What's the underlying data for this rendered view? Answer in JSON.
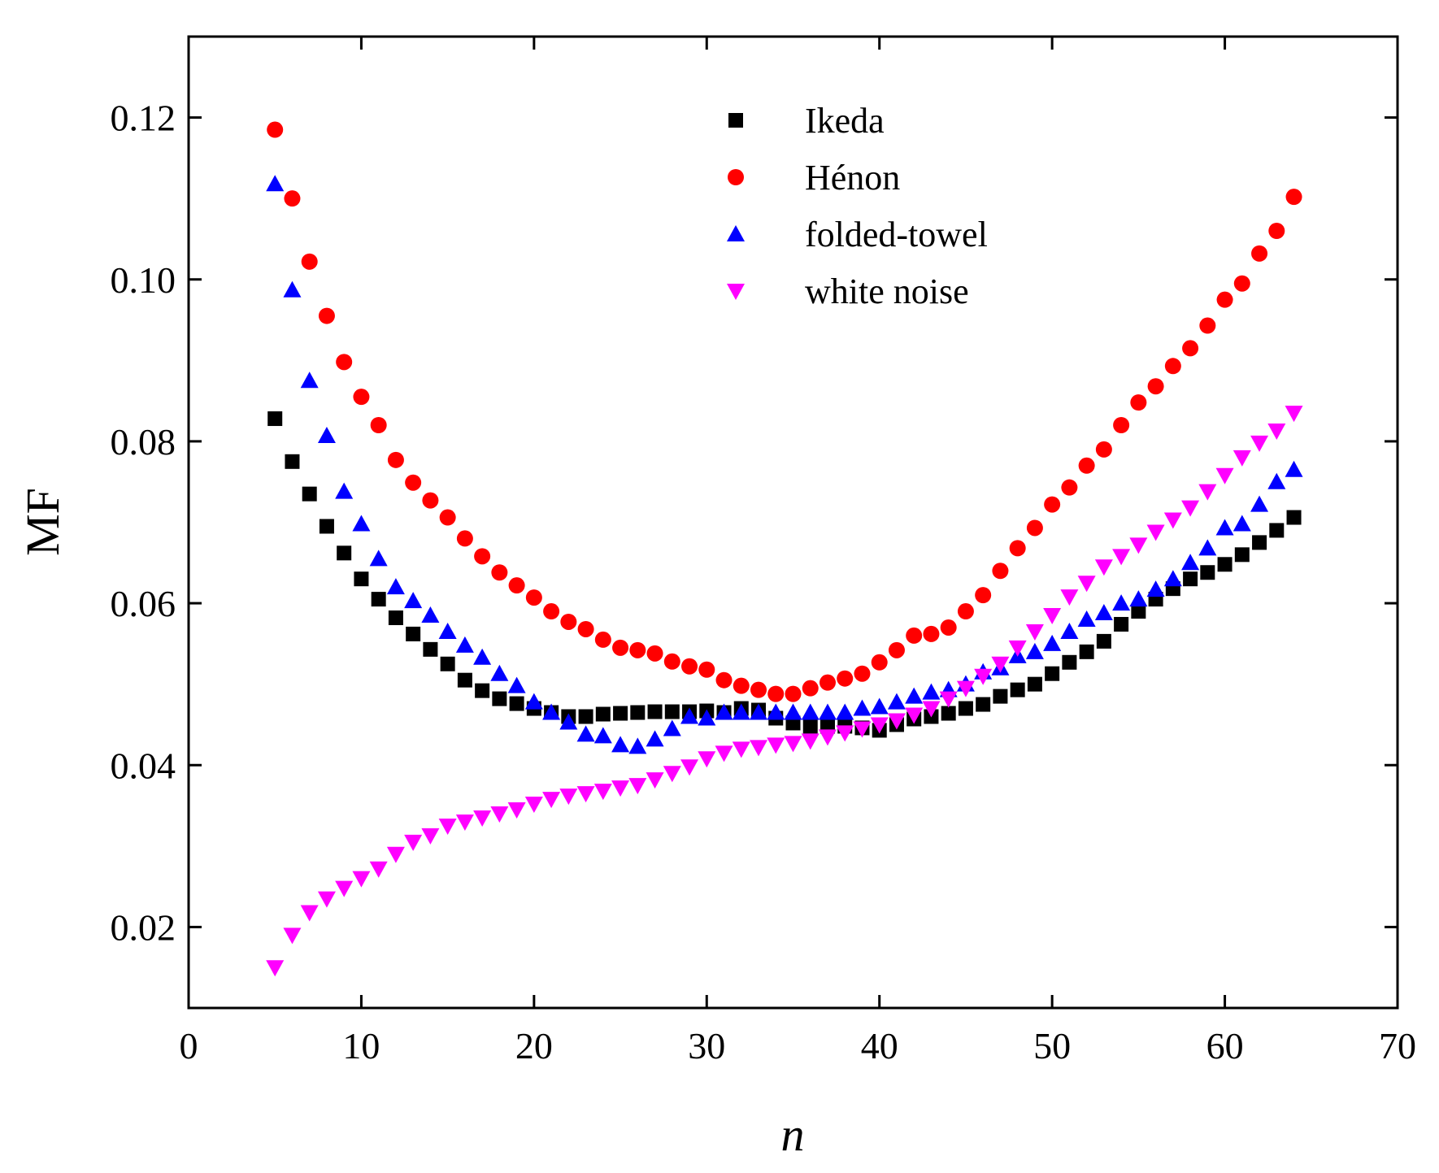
{
  "chart_data": {
    "type": "scatter",
    "title": "",
    "xlabel": "n",
    "ylabel": "MF",
    "xlim": [
      0,
      70
    ],
    "ylim": [
      0.01,
      0.13
    ],
    "xticks": [
      0,
      10,
      20,
      30,
      40,
      50,
      60,
      70
    ],
    "xtick_labels": [
      "0",
      "10",
      "20",
      "30",
      "40",
      "50",
      "60",
      "70"
    ],
    "yticks": [
      0.02,
      0.04,
      0.06,
      0.08,
      0.1,
      0.12
    ],
    "ytick_labels": [
      "0.02",
      "0.04",
      "0.06",
      "0.08",
      "0.10",
      "0.12"
    ],
    "grid": false,
    "legend_position": "top-center",
    "x": [
      5,
      6,
      7,
      8,
      9,
      10,
      11,
      12,
      13,
      14,
      15,
      16,
      17,
      18,
      19,
      20,
      21,
      22,
      23,
      24,
      25,
      26,
      27,
      28,
      29,
      30,
      31,
      32,
      33,
      34,
      35,
      36,
      37,
      38,
      39,
      40,
      41,
      42,
      43,
      44,
      45,
      46,
      47,
      48,
      49,
      50,
      51,
      52,
      53,
      54,
      55,
      56,
      57,
      58,
      59,
      60,
      61,
      62,
      63,
      64
    ],
    "series": [
      {
        "name": "Ikeda",
        "marker": "square",
        "color": "#000000",
        "values": [
          0.0828,
          0.0775,
          0.0735,
          0.0695,
          0.0662,
          0.063,
          0.0605,
          0.0582,
          0.0562,
          0.0543,
          0.0525,
          0.0505,
          0.0492,
          0.0482,
          0.0476,
          0.047,
          0.0465,
          0.046,
          0.046,
          0.0463,
          0.0464,
          0.0465,
          0.0466,
          0.0466,
          0.0466,
          0.0467,
          0.0465,
          0.047,
          0.0468,
          0.0458,
          0.0452,
          0.0448,
          0.0448,
          0.0448,
          0.0446,
          0.0443,
          0.045,
          0.0457,
          0.046,
          0.0464,
          0.047,
          0.0475,
          0.0485,
          0.0493,
          0.05,
          0.0513,
          0.0527,
          0.054,
          0.0553,
          0.0574,
          0.059,
          0.0605,
          0.0618,
          0.063,
          0.0638,
          0.0648,
          0.066,
          0.0675,
          0.069,
          0.0706
        ]
      },
      {
        "name": "Hénon",
        "marker": "circle",
        "color": "#ff0000",
        "values": [
          0.1185,
          0.11,
          0.1022,
          0.0955,
          0.0898,
          0.0855,
          0.082,
          0.0777,
          0.0749,
          0.0727,
          0.0706,
          0.068,
          0.0658,
          0.0638,
          0.0622,
          0.0607,
          0.059,
          0.0577,
          0.0568,
          0.0555,
          0.0545,
          0.0542,
          0.0538,
          0.0528,
          0.0522,
          0.0518,
          0.0505,
          0.0498,
          0.0493,
          0.0488,
          0.0488,
          0.0495,
          0.0502,
          0.0507,
          0.0513,
          0.0527,
          0.0542,
          0.056,
          0.0562,
          0.057,
          0.059,
          0.061,
          0.064,
          0.0668,
          0.0693,
          0.0722,
          0.0743,
          0.077,
          0.079,
          0.082,
          0.0848,
          0.0868,
          0.0893,
          0.0915,
          0.0943,
          0.0975,
          0.0995,
          0.1032,
          0.106,
          0.1102
        ]
      },
      {
        "name": "folded-towel",
        "marker": "triangle-up",
        "color": "#0000ff",
        "values": [
          0.1118,
          0.0987,
          0.0875,
          0.0807,
          0.0738,
          0.0698,
          0.0655,
          0.062,
          0.0603,
          0.0585,
          0.0565,
          0.0548,
          0.0533,
          0.0513,
          0.0498,
          0.0478,
          0.0465,
          0.0453,
          0.0438,
          0.0436,
          0.0425,
          0.0423,
          0.0432,
          0.0445,
          0.046,
          0.0458,
          0.0465,
          0.0465,
          0.0465,
          0.0465,
          0.0465,
          0.0465,
          0.0465,
          0.0465,
          0.047,
          0.0472,
          0.0478,
          0.0485,
          0.049,
          0.0493,
          0.05,
          0.0515,
          0.052,
          0.0535,
          0.054,
          0.055,
          0.0565,
          0.058,
          0.0588,
          0.06,
          0.0605,
          0.0617,
          0.063,
          0.065,
          0.0668,
          0.0693,
          0.0698,
          0.0722,
          0.075,
          0.0765
        ]
      },
      {
        "name": "white noise",
        "marker": "triangle-down",
        "color": "#ff00ff",
        "values": [
          0.015,
          0.019,
          0.0218,
          0.0235,
          0.0248,
          0.026,
          0.0272,
          0.029,
          0.0305,
          0.0313,
          0.0325,
          0.033,
          0.0335,
          0.034,
          0.0345,
          0.0352,
          0.0358,
          0.0362,
          0.0365,
          0.0368,
          0.0372,
          0.0375,
          0.0382,
          0.039,
          0.0398,
          0.0408,
          0.0415,
          0.042,
          0.0422,
          0.0425,
          0.0427,
          0.043,
          0.0435,
          0.044,
          0.0445,
          0.045,
          0.0455,
          0.0462,
          0.047,
          0.0482,
          0.0495,
          0.051,
          0.0525,
          0.0545,
          0.0565,
          0.0585,
          0.0608,
          0.0625,
          0.0645,
          0.0658,
          0.0672,
          0.0688,
          0.0703,
          0.0718,
          0.0738,
          0.0758,
          0.078,
          0.0798,
          0.0813,
          0.0835
        ]
      }
    ]
  }
}
